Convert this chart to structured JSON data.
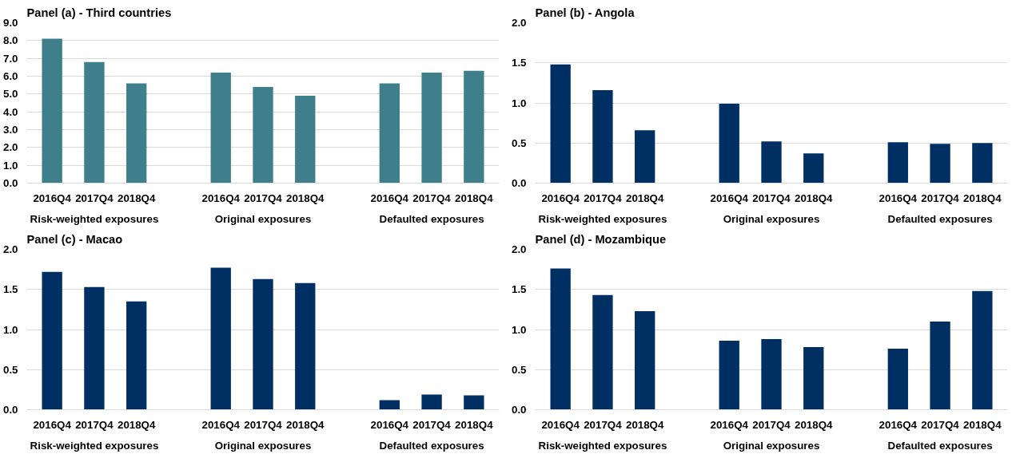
{
  "chart_data": [
    {
      "type": "bar",
      "title": "Panel (a) - Third countries",
      "categories": [
        "2016Q4",
        "2017Q4",
        "2018Q4",
        null,
        "2016Q4",
        "2017Q4",
        "2018Q4",
        null,
        "2016Q4",
        "2017Q4",
        "2018Q4"
      ],
      "annotations": [
        "Risk-weighted exposures",
        "Original exposures",
        "Defaulted exposures"
      ],
      "series": [
        {
          "color": "#3e7f8b",
          "values": [
            8.1,
            6.8,
            5.6,
            null,
            6.2,
            5.4,
            4.9,
            null,
            5.6,
            6.2,
            6.3
          ]
        }
      ],
      "ylim": [
        0,
        9
      ],
      "yticks": [
        {
          "value": 0,
          "label": "0.0"
        },
        {
          "value": 1,
          "label": "1.0"
        },
        {
          "value": 2,
          "label": "2.0"
        },
        {
          "value": 3,
          "label": "3.0"
        },
        {
          "value": 4,
          "label": "4.0"
        },
        {
          "value": 5,
          "label": "5.0"
        },
        {
          "value": 6,
          "label": "6.0"
        },
        {
          "value": 7,
          "label": "7.0"
        },
        {
          "value": 8,
          "label": "8.0"
        },
        {
          "value": 9,
          "label": "9.0"
        }
      ],
      "grid": "y"
    },
    {
      "type": "bar",
      "title": "Panel (b) - Angola",
      "categories": [
        "2016Q4",
        "2017Q4",
        "2018Q4",
        null,
        "2016Q4",
        "2017Q4",
        "2018Q4",
        null,
        "2016Q4",
        "2017Q4",
        "2018Q4"
      ],
      "annotations": [
        "Risk-weighted exposures",
        "Original exposures",
        "Defaulted exposures"
      ],
      "series": [
        {
          "color": "#003063",
          "values": [
            1.48,
            1.16,
            0.66,
            null,
            0.99,
            0.52,
            0.37,
            null,
            0.51,
            0.49,
            0.5
          ]
        }
      ],
      "ylim": [
        0,
        2
      ],
      "yticks": [
        {
          "value": 0,
          "label": "0.0"
        },
        {
          "value": 0.5,
          "label": "0.5"
        },
        {
          "value": 1,
          "label": "1.0"
        },
        {
          "value": 1.5,
          "label": "1.5"
        },
        {
          "value": 2,
          "label": "2.0"
        }
      ],
      "grid": "y"
    },
    {
      "type": "bar",
      "title": "Panel (c) - Macao",
      "categories": [
        "2016Q4",
        "2017Q4",
        "2018Q4",
        null,
        "2016Q4",
        "2017Q4",
        "2018Q4",
        null,
        "2016Q4",
        "2017Q4",
        "2018Q4"
      ],
      "annotations": [
        "Risk-weighted exposures",
        "Original exposures",
        "Defaulted exposures"
      ],
      "series": [
        {
          "color": "#003063",
          "values": [
            1.72,
            1.53,
            1.35,
            null,
            1.77,
            1.63,
            1.58,
            null,
            0.12,
            0.19,
            0.18
          ]
        }
      ],
      "ylim": [
        0,
        2
      ],
      "yticks": [
        {
          "value": 0,
          "label": "0.0"
        },
        {
          "value": 0.5,
          "label": "0.5"
        },
        {
          "value": 1,
          "label": "1.0"
        },
        {
          "value": 1.5,
          "label": "1.5"
        },
        {
          "value": 2,
          "label": "2.0"
        }
      ],
      "grid": "y"
    },
    {
      "type": "bar",
      "title": "Panel (d) - Mozambique",
      "categories": [
        "2016Q4",
        "2017Q4",
        "2018Q4",
        null,
        "2016Q4",
        "2017Q4",
        "2018Q4",
        null,
        "2016Q4",
        "2017Q4",
        "2018Q4"
      ],
      "annotations": [
        "Risk-weighted exposures",
        "Original exposures",
        "Defaulted exposures"
      ],
      "series": [
        {
          "color": "#003063",
          "values": [
            1.76,
            1.43,
            1.23,
            null,
            0.86,
            0.88,
            0.78,
            null,
            0.76,
            1.1,
            1.48
          ]
        }
      ],
      "ylim": [
        0,
        2
      ],
      "yticks": [
        {
          "value": 0,
          "label": "0.0"
        },
        {
          "value": 0.5,
          "label": "0.5"
        },
        {
          "value": 1,
          "label": "1.0"
        },
        {
          "value": 1.5,
          "label": "1.5"
        },
        {
          "value": 2,
          "label": "2.0"
        }
      ],
      "grid": "y"
    }
  ]
}
